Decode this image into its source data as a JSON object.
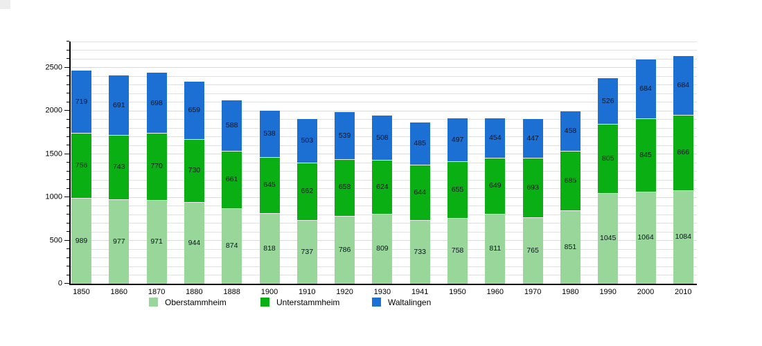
{
  "chart_data": {
    "type": "bar",
    "stacked": true,
    "title": "",
    "xlabel": "",
    "ylabel": "",
    "categories": [
      "1850",
      "1860",
      "1870",
      "1880",
      "1888",
      "1900",
      "1910",
      "1920",
      "1930",
      "1941",
      "1950",
      "1960",
      "1970",
      "1980",
      "1990",
      "2000",
      "2010"
    ],
    "series": [
      {
        "name": "Oberstammheim",
        "color": "#99d699",
        "values": [
          989,
          977,
          971,
          944,
          874,
          818,
          737,
          786,
          809,
          733,
          758,
          811,
          765,
          851,
          1045,
          1064,
          1084
        ]
      },
      {
        "name": "Unterstammheim",
        "color": "#0aaf14",
        "values": [
          756,
          743,
          770,
          730,
          661,
          645,
          662,
          658,
          624,
          644,
          655,
          649,
          693,
          685,
          805,
          845,
          866
        ]
      },
      {
        "name": "Waltalingen",
        "color": "#1c70d4",
        "values": [
          719,
          691,
          698,
          659,
          588,
          538,
          503,
          539,
          508,
          485,
          497,
          454,
          447,
          458,
          526,
          684,
          684
        ]
      }
    ],
    "ylim": [
      0,
      2800
    ],
    "yticks_major": [
      0,
      500,
      1000,
      1500,
      2000,
      2500
    ],
    "minor_step": 100,
    "grid": true,
    "legend_position": "bottom",
    "value_labels_shown": true
  }
}
